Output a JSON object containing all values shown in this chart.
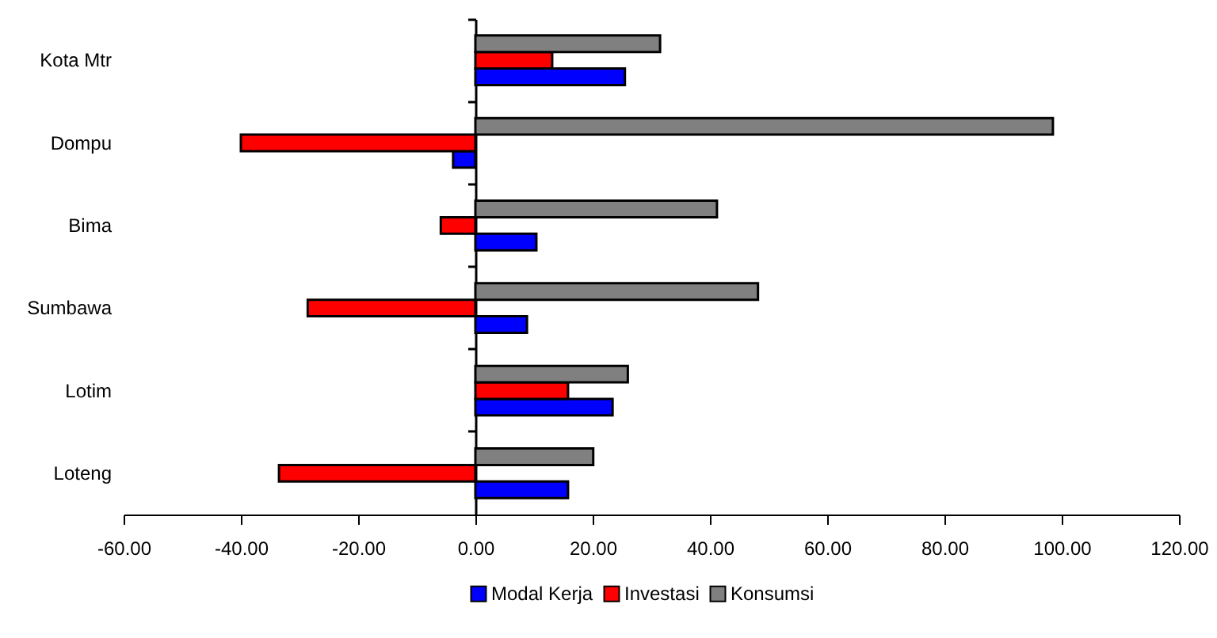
{
  "chart_data": {
    "type": "bar",
    "orientation": "horizontal",
    "categories": [
      "Kota Mtr",
      "Dompu",
      "Bima",
      "Sumbawa",
      "Lotim",
      "Loteng"
    ],
    "series": [
      {
        "name": "Modal Kerja",
        "color": "#0000ff",
        "values": [
          25.5,
          -3.8,
          10.4,
          8.8,
          23.4,
          15.8
        ]
      },
      {
        "name": "Investasi",
        "color": "#ff0000",
        "values": [
          13.1,
          -40,
          -5.9,
          -28.6,
          15.8,
          -33.5
        ]
      },
      {
        "name": "Konsumsi",
        "color": "#808080",
        "values": [
          31.5,
          98.5,
          41.2,
          48.2,
          26,
          20.1
        ]
      }
    ],
    "xlim": [
      -60,
      120
    ],
    "xticks": [
      {
        "value": -60,
        "label": "-60.00"
      },
      {
        "value": -40,
        "label": "-40.00"
      },
      {
        "value": -20,
        "label": "-20.00"
      },
      {
        "value": 0,
        "label": "0.00"
      },
      {
        "value": 20,
        "label": "20.00"
      },
      {
        "value": 40,
        "label": "40.00"
      },
      {
        "value": 60,
        "label": "60.00"
      },
      {
        "value": 80,
        "label": "80.00"
      },
      {
        "value": 100,
        "label": "100.00"
      },
      {
        "value": 120,
        "label": "120.00"
      }
    ],
    "legend": "bottom"
  }
}
